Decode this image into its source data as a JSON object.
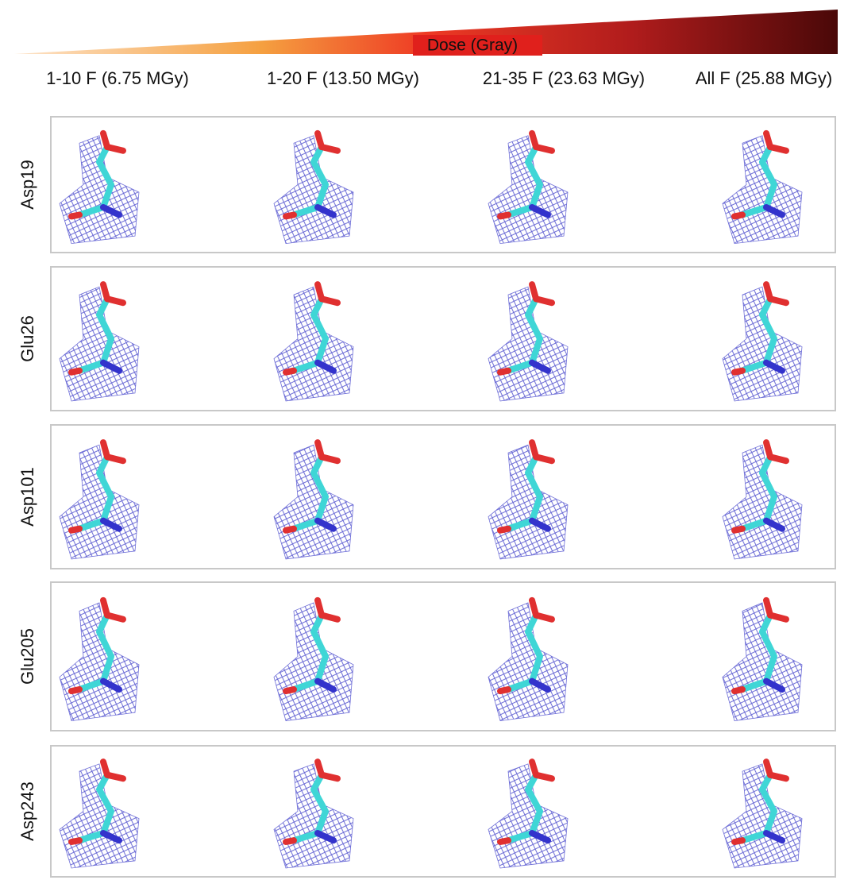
{
  "dose_label": "Dose (Gray)",
  "columns": [
    "1-10 F (6.75 MGy)",
    "1-20 F (13.50 MGy)",
    "21-35 F (23.63 MGy)",
    "All F (25.88 MGy)"
  ],
  "rows": [
    "Asp19",
    "Glu26",
    "Asp101",
    "Glu205",
    "Asp243"
  ]
}
